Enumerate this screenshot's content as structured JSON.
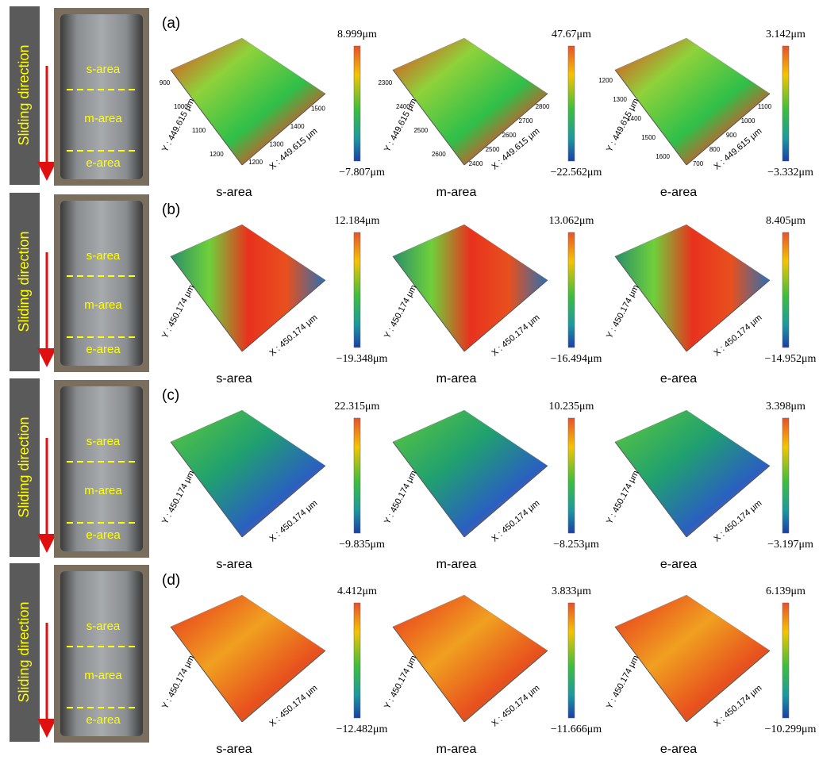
{
  "photos": [
    {
      "direction": "Sliding direction",
      "labels": [
        "s-area",
        "m-area",
        "e-area"
      ]
    },
    {
      "direction": "Sliding direction",
      "labels": [
        "s-area",
        "m-area",
        "e-area"
      ]
    },
    {
      "direction": "Sliding direction",
      "labels": [
        "s-area",
        "m-area",
        "e-area"
      ]
    },
    {
      "direction": "Sliding direction",
      "labels": [
        "s-area",
        "m-area",
        "e-area"
      ]
    }
  ],
  "rows": [
    {
      "panel": "(a)",
      "plots": [
        {
          "area": "s-area",
          "x_axis": "X : 449.615 μm",
          "y_axis": "Y : 449.615 μm",
          "max": "8.999μm",
          "min": "−7.807μm",
          "xticks": [
            "1200",
            "1300",
            "1400",
            "1500"
          ],
          "yticks": [
            "900",
            "1000",
            "1100",
            "1200"
          ]
        },
        {
          "area": "m-area",
          "x_axis": "X : 449.615 μm",
          "y_axis": "Y : 449.615 μm",
          "max": "47.67μm",
          "min": "−22.562μm",
          "xticks": [
            "2400",
            "2500",
            "2600",
            "2700",
            "2800"
          ],
          "yticks": [
            "2300",
            "2400",
            "2500",
            "2600"
          ]
        },
        {
          "area": "e-area",
          "x_axis": "X : 449.615 μm",
          "y_axis": "Y : 449.615 μm",
          "max": "3.142μm",
          "min": "−3.332μm",
          "xticks": [
            "700",
            "800",
            "900",
            "1000",
            "1100"
          ],
          "yticks": [
            "1200",
            "1300",
            "1400",
            "1500",
            "1600"
          ]
        }
      ]
    },
    {
      "panel": "(b)",
      "plots": [
        {
          "area": "s-area",
          "x_axis": "X : 450.174 μm",
          "y_axis": "Y : 450.174 μm",
          "max": "12.184μm",
          "min": "−19.348μm"
        },
        {
          "area": "m-area",
          "x_axis": "X : 450.174 μm",
          "y_axis": "Y : 450.174 μm",
          "max": "13.062μm",
          "min": "−16.494μm"
        },
        {
          "area": "e-area",
          "x_axis": "X : 450.174 μm",
          "y_axis": "Y : 450.174 μm",
          "max": "8.405μm",
          "min": "−14.952μm"
        }
      ]
    },
    {
      "panel": "(c)",
      "plots": [
        {
          "area": "s-area",
          "x_axis": "X : 450.174 μm",
          "y_axis": "Y : 450.174 μm",
          "max": "22.315μm",
          "min": "−9.835μm"
        },
        {
          "area": "m-area",
          "x_axis": "X : 450.174 μm",
          "y_axis": "Y : 450.174 μm",
          "max": "10.235μm",
          "min": "−8.253μm"
        },
        {
          "area": "e-area",
          "x_axis": "X : 450.174 μm",
          "y_axis": "Y : 450.174 μm",
          "max": "3.398μm",
          "min": "−3.197μm"
        }
      ]
    },
    {
      "panel": "(d)",
      "plots": [
        {
          "area": "s-area",
          "x_axis": "X : 450.174 μm",
          "y_axis": "Y : 450.174 μm",
          "max": "4.412μm",
          "min": "−12.482μm"
        },
        {
          "area": "m-area",
          "x_axis": "X : 450.174 μm",
          "y_axis": "Y : 450.174 μm",
          "max": "3.833μm",
          "min": "−11.666μm"
        },
        {
          "area": "e-area",
          "x_axis": "X : 450.174 μm",
          "y_axis": "Y : 450.174 μm",
          "max": "6.139μm",
          "min": "−10.299μm"
        }
      ]
    }
  ]
}
